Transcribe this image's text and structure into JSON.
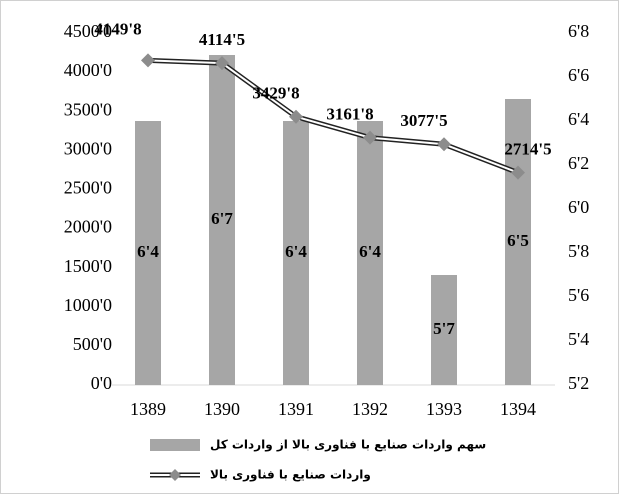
{
  "chart_data": {
    "type": "bar_line",
    "categories": [
      "1389",
      "1390",
      "1391",
      "1392",
      "1393",
      "1394"
    ],
    "series": [
      {
        "name": "سهم واردات صنایع با فناوری بالا از واردات  کل",
        "type": "bar",
        "axis": "y2",
        "color": "#a6a6a6",
        "values": [
          6.4,
          6.7,
          6.4,
          6.4,
          5.7,
          6.5
        ],
        "value_labels": [
          "6'4",
          "6'7",
          "6'4",
          "6'4",
          "5'7",
          "6'5"
        ]
      },
      {
        "name": "واردات صنایع با فناوری بالا",
        "type": "line",
        "axis": "y",
        "color": "#8c8c8c",
        "values": [
          4149.8,
          4114.5,
          3429.8,
          3161.8,
          3077.5,
          2714.5
        ],
        "value_labels": [
          "4149'8",
          "4114'5",
          "3429'8",
          "3161'8",
          "3077'5",
          "2714'5"
        ]
      }
    ],
    "ylim": [
      0,
      4500
    ],
    "yticks": [
      {
        "value": 0,
        "label": "0'0"
      },
      {
        "value": 500,
        "label": "500'0"
      },
      {
        "value": 1000,
        "label": "1000'0"
      },
      {
        "value": 1500,
        "label": "1500'0"
      },
      {
        "value": 2000,
        "label": "2000'0"
      },
      {
        "value": 2500,
        "label": "2500'0"
      },
      {
        "value": 3000,
        "label": "3000'0"
      },
      {
        "value": 3500,
        "label": "3500'0"
      },
      {
        "value": 4000,
        "label": "4000'0"
      },
      {
        "value": 4500,
        "label": "4500'0"
      }
    ],
    "y2lim": [
      5.2,
      6.8
    ],
    "y2ticks": [
      {
        "value": 5.2,
        "label": "5'2"
      },
      {
        "value": 5.4,
        "label": "5'4"
      },
      {
        "value": 5.6,
        "label": "5'6"
      },
      {
        "value": 5.8,
        "label": "5'8"
      },
      {
        "value": 6.0,
        "label": "6'0"
      },
      {
        "value": 6.2,
        "label": "6'2"
      },
      {
        "value": 6.4,
        "label": "6'4"
      },
      {
        "value": 6.6,
        "label": "6'6"
      },
      {
        "value": 6.8,
        "label": "6'8"
      }
    ],
    "grid": false
  }
}
